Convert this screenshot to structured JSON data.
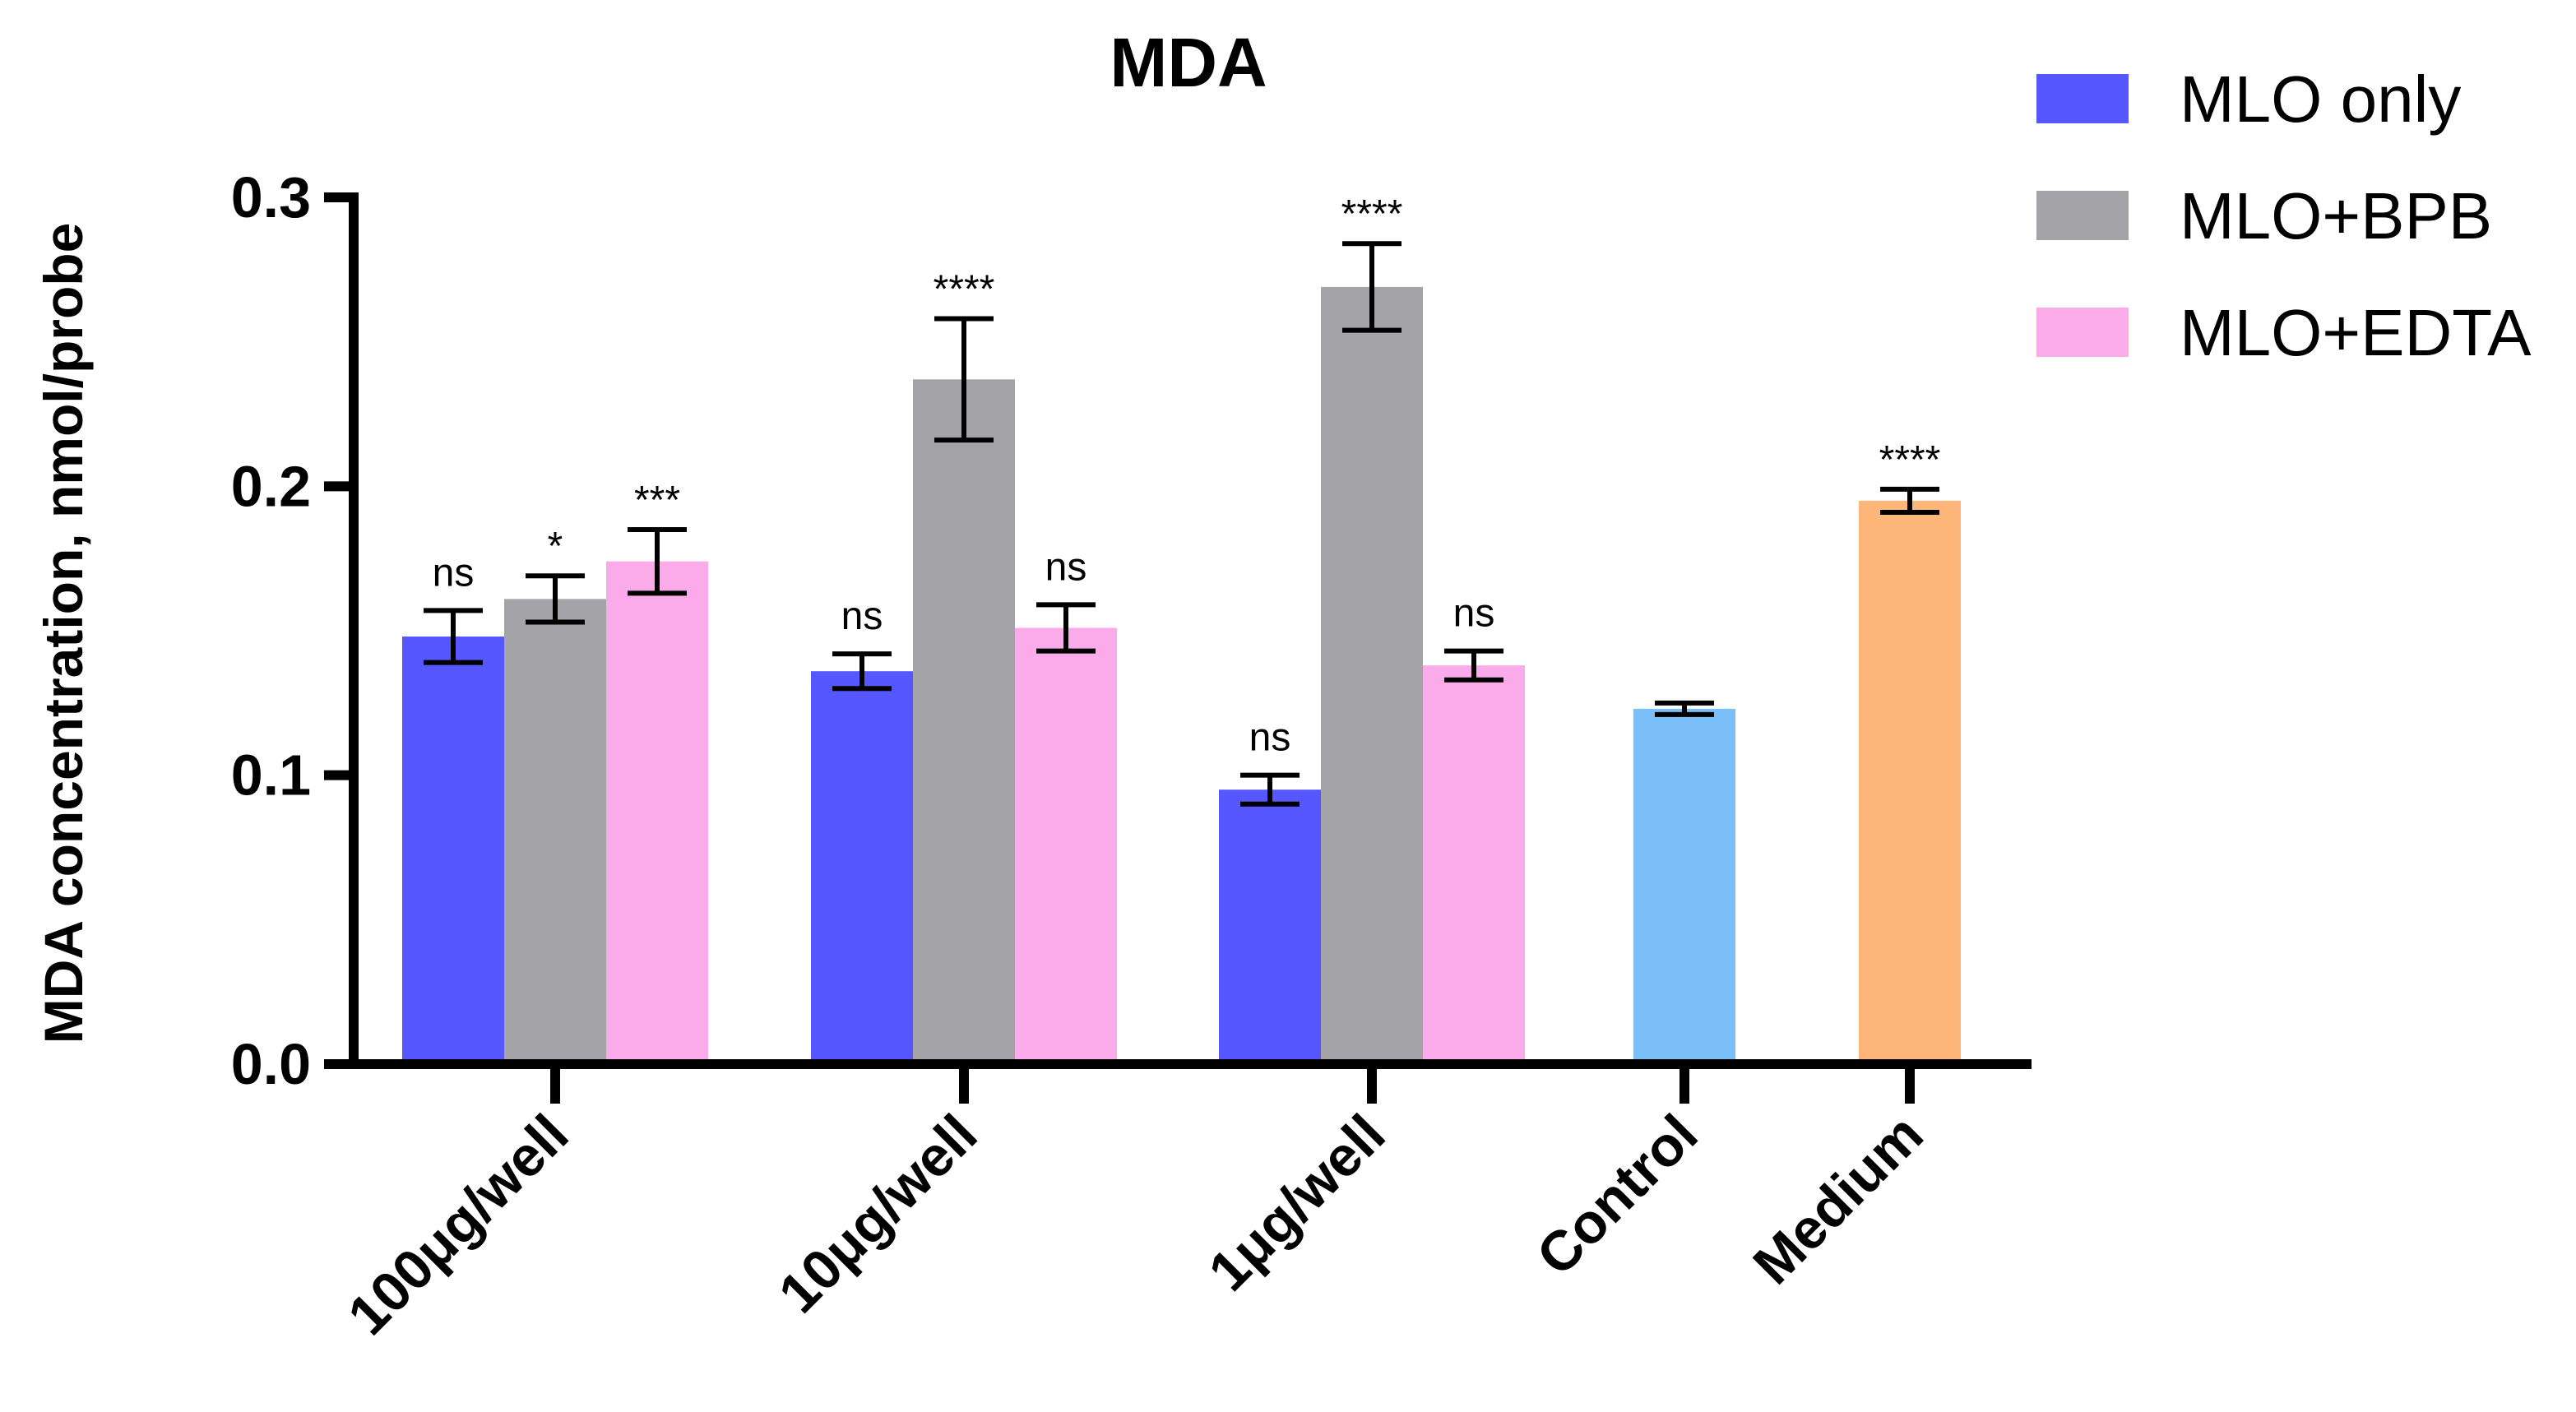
{
  "chart_data": {
    "type": "bar",
    "title": "MDA",
    "xlabel": "",
    "ylabel": "MDA concentration, nmol/probe",
    "ylim": [
      0,
      0.3
    ],
    "yticks": [
      "0.0",
      "0.1",
      "0.2",
      "0.3"
    ],
    "legend_position": "top-right",
    "grid": false,
    "series": [
      {
        "name": "MLO only",
        "color": "#5757FF"
      },
      {
        "name": "MLO+BPB",
        "color": "#A3A3A8"
      },
      {
        "name": "MLO+EDTA",
        "color": "#FBABEA"
      }
    ],
    "groups": [
      {
        "label": "100μg/well",
        "bars": [
          {
            "series": "MLO only",
            "value": 0.148,
            "error": 0.009,
            "sig": "ns",
            "color": "#5757FF"
          },
          {
            "series": "MLO+BPB",
            "value": 0.161,
            "error": 0.008,
            "sig": "*",
            "color": "#A3A3A8"
          },
          {
            "series": "MLO+EDTA",
            "value": 0.174,
            "error": 0.011,
            "sig": "***",
            "color": "#FBABEA"
          }
        ]
      },
      {
        "label": "10μg/well",
        "bars": [
          {
            "series": "MLO only",
            "value": 0.136,
            "error": 0.006,
            "sig": "ns",
            "color": "#5757FF"
          },
          {
            "series": "MLO+BPB",
            "value": 0.237,
            "error": 0.021,
            "sig": "****",
            "color": "#A3A3A8"
          },
          {
            "series": "MLO+EDTA",
            "value": 0.151,
            "error": 0.008,
            "sig": "ns",
            "color": "#FBABEA"
          }
        ]
      },
      {
        "label": "1μg/well",
        "bars": [
          {
            "series": "MLO only",
            "value": 0.095,
            "error": 0.005,
            "sig": "ns",
            "color": "#5757FF"
          },
          {
            "series": "MLO+BPB",
            "value": 0.269,
            "error": 0.015,
            "sig": "****",
            "color": "#A3A3A8"
          },
          {
            "series": "MLO+EDTA",
            "value": 0.138,
            "error": 0.005,
            "sig": "ns",
            "color": "#FBABEA"
          }
        ]
      },
      {
        "label": "Control",
        "bars": [
          {
            "series": "Control",
            "value": 0.123,
            "error": 0.002,
            "sig": "",
            "color": "#7ABFF7"
          }
        ]
      },
      {
        "label": "Medium",
        "bars": [
          {
            "series": "Medium",
            "value": 0.195,
            "error": 0.004,
            "sig": "****",
            "color": "#FFB67A"
          }
        ]
      }
    ]
  }
}
